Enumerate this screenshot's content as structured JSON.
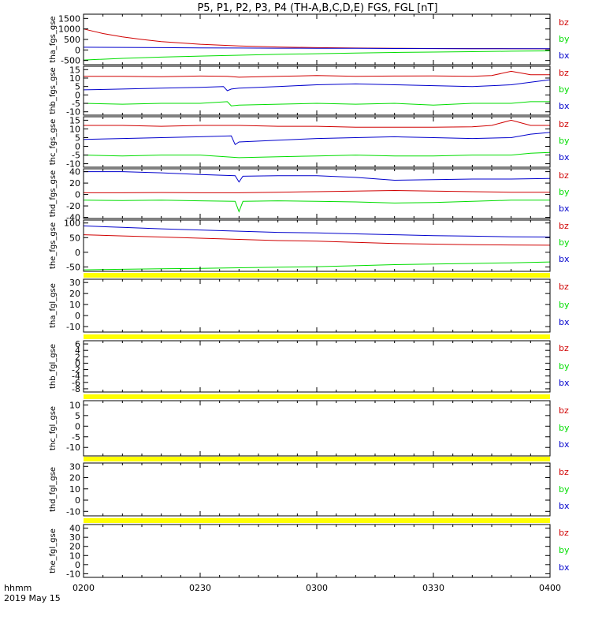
{
  "title": "P5, P1, P2, P3, P4 (TH-A,B,C,D,E) FGS, FGL [nT]",
  "footer": {
    "time_label": "hhmm",
    "date_label": "2019 May 15"
  },
  "colors": {
    "bz": "#d00000",
    "by": "#00dd00",
    "bx": "#0000cc",
    "bar": "#ffff00",
    "axis": "#000000"
  },
  "chart_data": {
    "type": "line",
    "title": "P5, P1, P2, P3, P4 (TH-A,B,C,D,E) FGS, FGL [nT]",
    "x_axis": {
      "label": "hhmm",
      "date": "2019 May 15",
      "range": [
        "02:00",
        "04:00"
      ],
      "ticks": [
        "0200",
        "0230",
        "0300",
        "0330",
        "0400"
      ]
    },
    "legend_labels": [
      "bz",
      "by",
      "bx"
    ],
    "panels": [
      {
        "ylabel": "tha_fgs_gse",
        "ylim": [
          -700,
          1700
        ],
        "yticks": [
          [
            "1500",
            1500
          ],
          [
            "1000",
            1000
          ],
          [
            "500",
            500
          ],
          [
            "0",
            0
          ],
          [
            "-500",
            -500
          ]
        ],
        "series": [
          {
            "name": "bz",
            "color": "#d00000",
            "times": [
              0,
              5,
              10,
              15,
              20,
              30,
              40,
              50,
              60,
              70,
              80,
              90,
              100,
              110,
              120
            ],
            "values": [
              1000,
              780,
              620,
              500,
              400,
              270,
              190,
              140,
              110,
              90,
              80,
              70,
              65,
              60,
              55
            ]
          },
          {
            "name": "by",
            "color": "#00dd00",
            "times": [
              0,
              10,
              20,
              30,
              40,
              50,
              60,
              70,
              80,
              90,
              100,
              110,
              120
            ],
            "values": [
              -480,
              -400,
              -340,
              -290,
              -250,
              -210,
              -180,
              -150,
              -120,
              -100,
              -80,
              -60,
              -45
            ]
          },
          {
            "name": "bx",
            "color": "#0000cc",
            "times": [
              0,
              10,
              20,
              30,
              40,
              50,
              60,
              70,
              80,
              90,
              100,
              110,
              120
            ],
            "values": [
              130,
              120,
              110,
              100,
              92,
              85,
              80,
              75,
              70,
              65,
              62,
              60,
              58
            ]
          }
        ]
      },
      {
        "ylabel": "thb_fgs_gse",
        "ylim": [
          -12,
          17
        ],
        "yticks": [
          [
            "15",
            15
          ],
          [
            "10",
            10
          ],
          [
            "5",
            5
          ],
          [
            "0",
            0
          ],
          [
            "-5",
            -5
          ],
          [
            "-10",
            -10
          ]
        ],
        "series": [
          {
            "name": "bz",
            "color": "#d00000",
            "times": [
              0,
              10,
              20,
              30,
              37,
              40,
              50,
              60,
              70,
              80,
              90,
              100,
              105,
              110,
              115,
              120
            ],
            "values": [
              11,
              11,
              10.8,
              11.2,
              11,
              10.5,
              11,
              11.5,
              11,
              11.2,
              11.3,
              11,
              11.5,
              14,
              12,
              12
            ]
          },
          {
            "name": "by",
            "color": "#00dd00",
            "times": [
              0,
              10,
              20,
              30,
              37,
              38,
              40,
              50,
              60,
              70,
              80,
              90,
              100,
              110,
              115,
              120
            ],
            "values": [
              -5,
              -5.5,
              -5,
              -5,
              -4,
              -6.5,
              -6,
              -5.5,
              -5,
              -5.5,
              -5,
              -6,
              -5,
              -5,
              -4,
              -4
            ]
          },
          {
            "name": "bx",
            "color": "#0000cc",
            "times": [
              0,
              10,
              20,
              30,
              36,
              37,
              38,
              40,
              50,
              60,
              70,
              80,
              90,
              100,
              110,
              115,
              120
            ],
            "values": [
              3,
              3.5,
              4,
              4.5,
              5,
              2.5,
              3.5,
              4,
              5,
              6,
              6.5,
              6,
              5.5,
              5,
              6,
              7.5,
              9
            ]
          }
        ]
      },
      {
        "ylabel": "thc_fgs_gse",
        "ylim": [
          -12,
          17
        ],
        "yticks": [
          [
            "15",
            15
          ],
          [
            "10",
            10
          ],
          [
            "5",
            5
          ],
          [
            "0",
            0
          ],
          [
            "-5",
            -5
          ],
          [
            "-10",
            -10
          ]
        ],
        "series": [
          {
            "name": "bz",
            "color": "#d00000",
            "times": [
              0,
              10,
              20,
              30,
              40,
              50,
              60,
              70,
              80,
              90,
              100,
              105,
              110,
              115,
              120
            ],
            "values": [
              12,
              12,
              11.5,
              12,
              12,
              11.5,
              11.5,
              11,
              11,
              11,
              11.2,
              12,
              15,
              12,
              12
            ]
          },
          {
            "name": "by",
            "color": "#00dd00",
            "times": [
              0,
              10,
              20,
              30,
              40,
              50,
              60,
              70,
              80,
              90,
              100,
              110,
              115,
              120
            ],
            "values": [
              -5,
              -5.5,
              -5,
              -5,
              -6.5,
              -6,
              -5.5,
              -5,
              -5.5,
              -5.5,
              -5,
              -5,
              -4,
              -3.5
            ]
          },
          {
            "name": "bx",
            "color": "#0000cc",
            "times": [
              0,
              10,
              20,
              30,
              38,
              39,
              40,
              50,
              60,
              70,
              80,
              90,
              100,
              110,
              115,
              120
            ],
            "values": [
              4,
              4.5,
              5,
              5.5,
              6,
              1,
              2.5,
              3.5,
              4.5,
              5,
              5.5,
              5,
              4.5,
              5,
              7,
              8
            ]
          }
        ]
      },
      {
        "ylabel": "thd_fgs_gse",
        "ylim": [
          -42,
          45
        ],
        "yticks": [
          [
            "40",
            40
          ],
          [
            "20",
            20
          ],
          [
            "0",
            0
          ],
          [
            "-20",
            -20
          ],
          [
            "-40",
            -40
          ]
        ],
        "series": [
          {
            "name": "bz",
            "color": "#d00000",
            "times": [
              0,
              10,
              20,
              30,
              40,
              50,
              60,
              70,
              80,
              90,
              100,
              110,
              120
            ],
            "values": [
              3,
              3,
              3.5,
              3,
              3,
              4,
              5,
              6,
              7,
              6,
              5,
              4,
              4
            ]
          },
          {
            "name": "by",
            "color": "#00dd00",
            "times": [
              0,
              10,
              20,
              30,
              39,
              40,
              41,
              50,
              60,
              70,
              80,
              90,
              100,
              110,
              120
            ],
            "values": [
              -10,
              -10.5,
              -10,
              -11,
              -12,
              -30,
              -12,
              -11,
              -12,
              -13,
              -15,
              -14,
              -12,
              -10,
              -10
            ]
          },
          {
            "name": "bx",
            "color": "#0000cc",
            "times": [
              0,
              10,
              20,
              30,
              39,
              40,
              41,
              50,
              60,
              70,
              80,
              90,
              100,
              110,
              120
            ],
            "values": [
              40,
              40,
              38,
              35,
              33,
              22,
              32,
              33,
              33,
              30,
              25,
              26,
              27,
              27,
              28
            ]
          }
        ]
      },
      {
        "ylabel": "the_fgs_gse",
        "ylim": [
          -65,
          110
        ],
        "yticks": [
          [
            "100",
            100
          ],
          [
            "50",
            50
          ],
          [
            "0",
            0
          ],
          [
            "-50",
            -50
          ]
        ],
        "series": [
          {
            "name": "bz",
            "color": "#d00000",
            "times": [
              0,
              10,
              20,
              30,
              40,
              50,
              60,
              70,
              80,
              90,
              100,
              110,
              120
            ],
            "values": [
              60,
              56,
              52,
              48,
              44,
              40,
              38,
              34,
              30,
              28,
              26,
              25,
              24
            ]
          },
          {
            "name": "by",
            "color": "#00dd00",
            "times": [
              0,
              10,
              20,
              30,
              40,
              50,
              60,
              70,
              80,
              90,
              100,
              110,
              120
            ],
            "values": [
              -60,
              -58,
              -56,
              -55,
              -53,
              -51,
              -49,
              -46,
              -42,
              -40,
              -38,
              -36,
              -33
            ]
          },
          {
            "name": "bx",
            "color": "#0000cc",
            "times": [
              0,
              10,
              20,
              30,
              40,
              50,
              60,
              70,
              80,
              90,
              100,
              110,
              120
            ],
            "values": [
              90,
              85,
              80,
              76,
              72,
              68,
              66,
              63,
              60,
              57,
              55,
              53,
              52
            ]
          }
        ]
      },
      {
        "ylabel": "tha_fgl_gse",
        "ylim": [
          -15,
          33
        ],
        "bar": true,
        "yticks": [
          [
            "30",
            30
          ],
          [
            "20",
            20
          ],
          [
            "10",
            10
          ],
          [
            "0",
            0
          ],
          [
            "-10",
            -10
          ]
        ],
        "series": []
      },
      {
        "ylabel": "thb_fgl_gse",
        "ylim": [
          -9,
          7
        ],
        "bar": true,
        "yticks": [
          [
            "6",
            6
          ],
          [
            "4",
            4
          ],
          [
            "2",
            2
          ],
          [
            "0",
            0
          ],
          [
            "-2",
            -2
          ],
          [
            "-4",
            -4
          ],
          [
            "-6",
            -6
          ],
          [
            "-8",
            -8
          ]
        ],
        "series": []
      },
      {
        "ylabel": "thc_fgl_gse",
        "ylim": [
          -14,
          12
        ],
        "bar": true,
        "yticks": [
          [
            "10",
            10
          ],
          [
            "5",
            5
          ],
          [
            "0",
            0
          ],
          [
            "-5",
            -5
          ],
          [
            "-10",
            -10
          ]
        ],
        "series": []
      },
      {
        "ylabel": "thd_fgl_gse",
        "ylim": [
          -14,
          33
        ],
        "bar": true,
        "yticks": [
          [
            "30",
            30
          ],
          [
            "20",
            20
          ],
          [
            "10",
            10
          ],
          [
            "0",
            0
          ],
          [
            "-10",
            -10
          ]
        ],
        "series": []
      },
      {
        "ylabel": "the_fgl_gse",
        "ylim": [
          -14,
          44
        ],
        "bar": true,
        "yticks": [
          [
            "40",
            40
          ],
          [
            "30",
            30
          ],
          [
            "20",
            20
          ],
          [
            "10",
            10
          ],
          [
            "0",
            0
          ],
          [
            "-10",
            -10
          ]
        ],
        "series": []
      }
    ]
  }
}
